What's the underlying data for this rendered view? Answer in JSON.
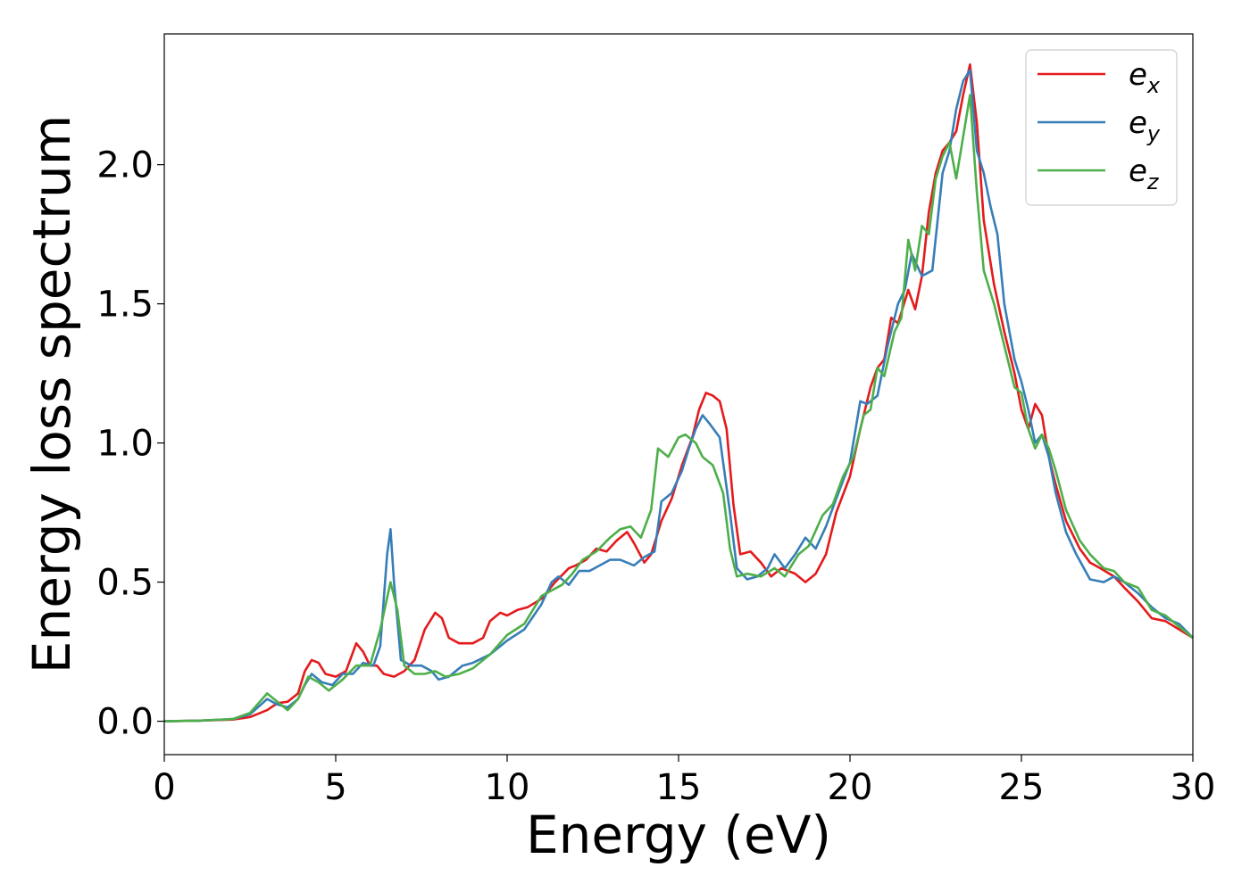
{
  "chart_data": {
    "type": "line",
    "title": "",
    "xlabel": "Energy (eV)",
    "ylabel": "Energy loss spectrum",
    "xlim": [
      0,
      30
    ],
    "ylim": [
      -0.12,
      2.47
    ],
    "xticks": [
      0,
      5,
      10,
      15,
      20,
      25,
      30
    ],
    "xtick_labels": [
      "0",
      "5",
      "10",
      "15",
      "20",
      "25",
      "30"
    ],
    "yticks": [
      0.0,
      0.5,
      1.0,
      1.5,
      2.0
    ],
    "ytick_labels": [
      "0.0",
      "0.5",
      "1.0",
      "1.5",
      "2.0"
    ],
    "grid": false,
    "legend_position": "top-right",
    "series": [
      {
        "name": "e_x",
        "label_main": "e",
        "label_sub": "x",
        "color": "#e41a1c",
        "points": [
          [
            0,
            0
          ],
          [
            1,
            0.002
          ],
          [
            2,
            0.006
          ],
          [
            2.5,
            0.015
          ],
          [
            3,
            0.04
          ],
          [
            3.3,
            0.065
          ],
          [
            3.6,
            0.07
          ],
          [
            3.9,
            0.1
          ],
          [
            4.1,
            0.18
          ],
          [
            4.3,
            0.22
          ],
          [
            4.5,
            0.21
          ],
          [
            4.7,
            0.17
          ],
          [
            5,
            0.16
          ],
          [
            5.3,
            0.18
          ],
          [
            5.6,
            0.28
          ],
          [
            5.8,
            0.25
          ],
          [
            6,
            0.2
          ],
          [
            6.2,
            0.2
          ],
          [
            6.4,
            0.17
          ],
          [
            6.7,
            0.16
          ],
          [
            7,
            0.18
          ],
          [
            7.3,
            0.22
          ],
          [
            7.6,
            0.33
          ],
          [
            7.9,
            0.39
          ],
          [
            8.1,
            0.37
          ],
          [
            8.3,
            0.3
          ],
          [
            8.6,
            0.28
          ],
          [
            9,
            0.28
          ],
          [
            9.3,
            0.3
          ],
          [
            9.5,
            0.36
          ],
          [
            9.8,
            0.39
          ],
          [
            10,
            0.38
          ],
          [
            10.3,
            0.4
          ],
          [
            10.6,
            0.41
          ],
          [
            11,
            0.44
          ],
          [
            11.4,
            0.5
          ],
          [
            11.8,
            0.55
          ],
          [
            12,
            0.56
          ],
          [
            12.3,
            0.58
          ],
          [
            12.6,
            0.62
          ],
          [
            12.9,
            0.61
          ],
          [
            13.2,
            0.65
          ],
          [
            13.5,
            0.68
          ],
          [
            13.7,
            0.64
          ],
          [
            14,
            0.57
          ],
          [
            14.2,
            0.6
          ],
          [
            14.5,
            0.72
          ],
          [
            14.8,
            0.8
          ],
          [
            15.1,
            0.92
          ],
          [
            15.4,
            1.02
          ],
          [
            15.6,
            1.12
          ],
          [
            15.8,
            1.18
          ],
          [
            16,
            1.17
          ],
          [
            16.2,
            1.15
          ],
          [
            16.4,
            1.05
          ],
          [
            16.6,
            0.78
          ],
          [
            16.8,
            0.6
          ],
          [
            17.1,
            0.61
          ],
          [
            17.4,
            0.57
          ],
          [
            17.7,
            0.52
          ],
          [
            18,
            0.55
          ],
          [
            18.4,
            0.53
          ],
          [
            18.7,
            0.5
          ],
          [
            19,
            0.53
          ],
          [
            19.3,
            0.6
          ],
          [
            19.6,
            0.75
          ],
          [
            20,
            0.88
          ],
          [
            20.3,
            1.05
          ],
          [
            20.6,
            1.2
          ],
          [
            20.8,
            1.27
          ],
          [
            21,
            1.3
          ],
          [
            21.2,
            1.45
          ],
          [
            21.4,
            1.43
          ],
          [
            21.7,
            1.55
          ],
          [
            21.9,
            1.48
          ],
          [
            22.1,
            1.6
          ],
          [
            22.3,
            1.83
          ],
          [
            22.5,
            1.97
          ],
          [
            22.7,
            2.05
          ],
          [
            22.9,
            2.08
          ],
          [
            23.1,
            2.12
          ],
          [
            23.3,
            2.25
          ],
          [
            23.5,
            2.36
          ],
          [
            23.7,
            2.15
          ],
          [
            23.9,
            1.8
          ],
          [
            24.2,
            1.57
          ],
          [
            24.5,
            1.4
          ],
          [
            24.8,
            1.25
          ],
          [
            25,
            1.12
          ],
          [
            25.2,
            1.05
          ],
          [
            25.4,
            1.14
          ],
          [
            25.6,
            1.1
          ],
          [
            25.8,
            0.95
          ],
          [
            26,
            0.85
          ],
          [
            26.3,
            0.72
          ],
          [
            26.7,
            0.62
          ],
          [
            27,
            0.57
          ],
          [
            27.3,
            0.55
          ],
          [
            27.7,
            0.52
          ],
          [
            28,
            0.48
          ],
          [
            28.4,
            0.43
          ],
          [
            28.8,
            0.37
          ],
          [
            29.2,
            0.36
          ],
          [
            29.6,
            0.33
          ],
          [
            30,
            0.3
          ]
        ]
      },
      {
        "name": "e_y",
        "label_main": "e",
        "label_sub": "y",
        "color": "#377eb8",
        "points": [
          [
            0,
            0
          ],
          [
            1,
            0.002
          ],
          [
            2,
            0.008
          ],
          [
            2.5,
            0.025
          ],
          [
            3,
            0.08
          ],
          [
            3.3,
            0.06
          ],
          [
            3.6,
            0.05
          ],
          [
            3.9,
            0.08
          ],
          [
            4.1,
            0.13
          ],
          [
            4.3,
            0.17
          ],
          [
            4.6,
            0.14
          ],
          [
            4.9,
            0.13
          ],
          [
            5.2,
            0.17
          ],
          [
            5.5,
            0.17
          ],
          [
            5.8,
            0.21
          ],
          [
            6.1,
            0.2
          ],
          [
            6.3,
            0.27
          ],
          [
            6.5,
            0.6
          ],
          [
            6.6,
            0.69
          ],
          [
            6.7,
            0.5
          ],
          [
            6.9,
            0.22
          ],
          [
            7.2,
            0.2
          ],
          [
            7.5,
            0.2
          ],
          [
            7.8,
            0.18
          ],
          [
            8,
            0.15
          ],
          [
            8.3,
            0.16
          ],
          [
            8.7,
            0.2
          ],
          [
            9,
            0.21
          ],
          [
            9.5,
            0.24
          ],
          [
            10,
            0.29
          ],
          [
            10.5,
            0.33
          ],
          [
            11,
            0.42
          ],
          [
            11.3,
            0.5
          ],
          [
            11.5,
            0.52
          ],
          [
            11.8,
            0.49
          ],
          [
            12.1,
            0.54
          ],
          [
            12.4,
            0.54
          ],
          [
            12.7,
            0.56
          ],
          [
            13,
            0.58
          ],
          [
            13.3,
            0.58
          ],
          [
            13.7,
            0.56
          ],
          [
            14,
            0.59
          ],
          [
            14.3,
            0.61
          ],
          [
            14.5,
            0.79
          ],
          [
            14.8,
            0.82
          ],
          [
            15.1,
            0.9
          ],
          [
            15.3,
            0.98
          ],
          [
            15.5,
            1.05
          ],
          [
            15.7,
            1.1
          ],
          [
            15.9,
            1.07
          ],
          [
            16.2,
            1.02
          ],
          [
            16.5,
            0.75
          ],
          [
            16.7,
            0.55
          ],
          [
            17,
            0.51
          ],
          [
            17.3,
            0.52
          ],
          [
            17.6,
            0.55
          ],
          [
            17.8,
            0.6
          ],
          [
            18.1,
            0.55
          ],
          [
            18.4,
            0.6
          ],
          [
            18.7,
            0.66
          ],
          [
            19,
            0.62
          ],
          [
            19.3,
            0.7
          ],
          [
            19.6,
            0.8
          ],
          [
            20,
            0.93
          ],
          [
            20.3,
            1.15
          ],
          [
            20.5,
            1.14
          ],
          [
            20.8,
            1.17
          ],
          [
            21.1,
            1.35
          ],
          [
            21.4,
            1.5
          ],
          [
            21.6,
            1.55
          ],
          [
            21.8,
            1.68
          ],
          [
            22.1,
            1.6
          ],
          [
            22.4,
            1.62
          ],
          [
            22.7,
            1.97
          ],
          [
            22.9,
            2.05
          ],
          [
            23.1,
            2.2
          ],
          [
            23.3,
            2.3
          ],
          [
            23.5,
            2.34
          ],
          [
            23.7,
            2.05
          ],
          [
            23.9,
            1.97
          ],
          [
            24.1,
            1.85
          ],
          [
            24.3,
            1.75
          ],
          [
            24.5,
            1.5
          ],
          [
            24.8,
            1.3
          ],
          [
            25,
            1.22
          ],
          [
            25.2,
            1.12
          ],
          [
            25.4,
            1.0
          ],
          [
            25.6,
            1.03
          ],
          [
            25.8,
            0.95
          ],
          [
            26,
            0.82
          ],
          [
            26.3,
            0.68
          ],
          [
            26.6,
            0.6
          ],
          [
            27,
            0.51
          ],
          [
            27.4,
            0.5
          ],
          [
            27.7,
            0.52
          ],
          [
            28,
            0.5
          ],
          [
            28.4,
            0.46
          ],
          [
            28.8,
            0.41
          ],
          [
            29.2,
            0.37
          ],
          [
            29.6,
            0.35
          ],
          [
            30,
            0.3
          ]
        ]
      },
      {
        "name": "e_z",
        "label_main": "e",
        "label_sub": "z",
        "color": "#4daf4a",
        "points": [
          [
            0,
            0
          ],
          [
            1,
            0.002
          ],
          [
            2,
            0.008
          ],
          [
            2.5,
            0.03
          ],
          [
            3,
            0.1
          ],
          [
            3.3,
            0.07
          ],
          [
            3.6,
            0.04
          ],
          [
            3.9,
            0.08
          ],
          [
            4.2,
            0.16
          ],
          [
            4.5,
            0.14
          ],
          [
            4.8,
            0.11
          ],
          [
            5.2,
            0.15
          ],
          [
            5.6,
            0.2
          ],
          [
            6,
            0.2
          ],
          [
            6.3,
            0.33
          ],
          [
            6.6,
            0.5
          ],
          [
            6.8,
            0.4
          ],
          [
            7,
            0.2
          ],
          [
            7.3,
            0.17
          ],
          [
            7.6,
            0.17
          ],
          [
            7.9,
            0.18
          ],
          [
            8.2,
            0.16
          ],
          [
            8.6,
            0.17
          ],
          [
            9,
            0.19
          ],
          [
            9.5,
            0.24
          ],
          [
            10,
            0.31
          ],
          [
            10.5,
            0.35
          ],
          [
            11,
            0.45
          ],
          [
            11.3,
            0.47
          ],
          [
            11.6,
            0.49
          ],
          [
            11.9,
            0.53
          ],
          [
            12.2,
            0.58
          ],
          [
            12.6,
            0.61
          ],
          [
            13,
            0.66
          ],
          [
            13.3,
            0.69
          ],
          [
            13.6,
            0.7
          ],
          [
            13.9,
            0.66
          ],
          [
            14.2,
            0.76
          ],
          [
            14.4,
            0.98
          ],
          [
            14.7,
            0.95
          ],
          [
            15,
            1.02
          ],
          [
            15.2,
            1.03
          ],
          [
            15.5,
            1.0
          ],
          [
            15.7,
            0.95
          ],
          [
            16,
            0.92
          ],
          [
            16.3,
            0.82
          ],
          [
            16.5,
            0.62
          ],
          [
            16.7,
            0.52
          ],
          [
            17,
            0.53
          ],
          [
            17.4,
            0.52
          ],
          [
            17.8,
            0.55
          ],
          [
            18.1,
            0.52
          ],
          [
            18.5,
            0.6
          ],
          [
            18.8,
            0.63
          ],
          [
            19.2,
            0.74
          ],
          [
            19.5,
            0.78
          ],
          [
            19.8,
            0.88
          ],
          [
            20.1,
            0.95
          ],
          [
            20.4,
            1.1
          ],
          [
            20.6,
            1.12
          ],
          [
            20.8,
            1.27
          ],
          [
            21,
            1.24
          ],
          [
            21.3,
            1.4
          ],
          [
            21.5,
            1.45
          ],
          [
            21.7,
            1.73
          ],
          [
            21.9,
            1.62
          ],
          [
            22.1,
            1.78
          ],
          [
            22.3,
            1.75
          ],
          [
            22.5,
            1.95
          ],
          [
            22.7,
            2.03
          ],
          [
            22.9,
            2.08
          ],
          [
            23.1,
            1.95
          ],
          [
            23.3,
            2.1
          ],
          [
            23.5,
            2.25
          ],
          [
            23.7,
            1.9
          ],
          [
            23.9,
            1.62
          ],
          [
            24.2,
            1.5
          ],
          [
            24.5,
            1.35
          ],
          [
            24.8,
            1.2
          ],
          [
            25,
            1.18
          ],
          [
            25.2,
            1.05
          ],
          [
            25.4,
            0.98
          ],
          [
            25.6,
            1.03
          ],
          [
            25.8,
            0.98
          ],
          [
            26,
            0.9
          ],
          [
            26.3,
            0.76
          ],
          [
            26.7,
            0.65
          ],
          [
            27,
            0.6
          ],
          [
            27.4,
            0.55
          ],
          [
            27.7,
            0.54
          ],
          [
            28,
            0.5
          ],
          [
            28.4,
            0.48
          ],
          [
            28.8,
            0.4
          ],
          [
            29.2,
            0.38
          ],
          [
            29.6,
            0.34
          ],
          [
            30,
            0.3
          ]
        ]
      }
    ]
  }
}
